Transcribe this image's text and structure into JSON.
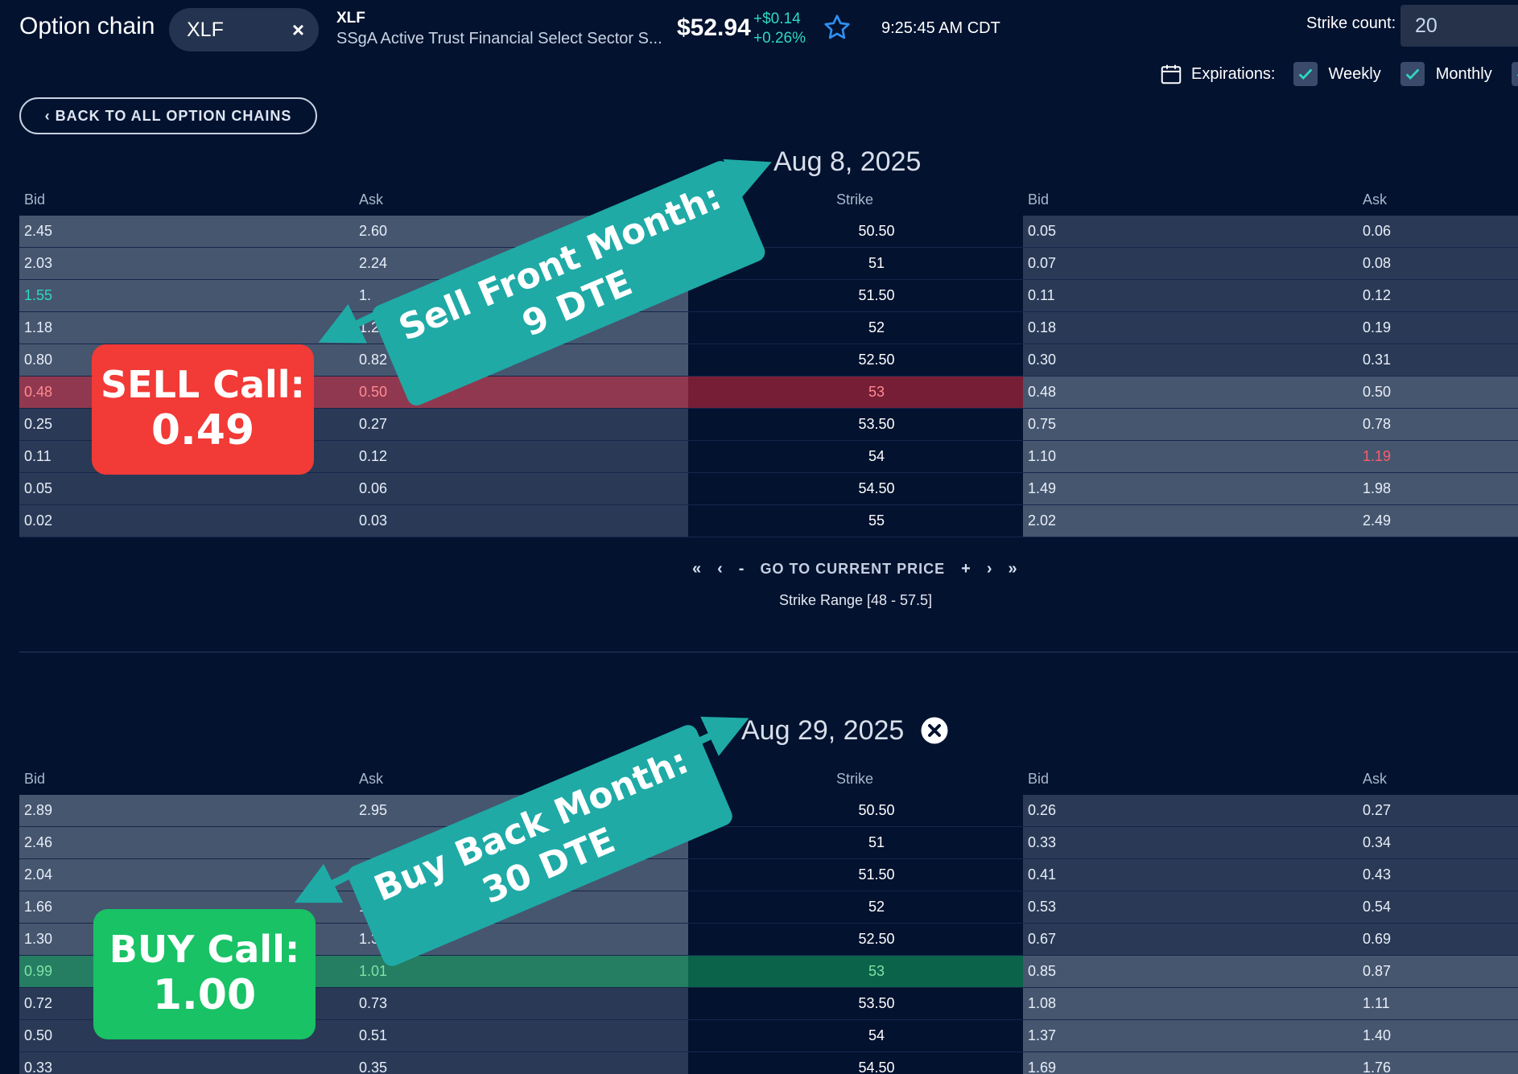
{
  "header": {
    "app_title": "Option chain",
    "symbol": "XLF",
    "clear_symbol": "×",
    "ticker": "XLF",
    "ticker_name": "SSgA Active Trust Financial Select Sector S...",
    "price": "$52.94",
    "change_abs": "+$0.14",
    "change_pct": "+0.26%",
    "time": "9:25:45 AM CDT",
    "strike_count_label": "Strike count:",
    "strike_count": "20",
    "expirations_label": "Expirations:",
    "filters": [
      {
        "label": "Weekly",
        "checked": true
      },
      {
        "label": "Monthly",
        "checked": true
      }
    ],
    "back_button": "‹ BACK TO ALL OPTION CHAINS"
  },
  "columns": {
    "bid": "Bid",
    "ask": "Ask",
    "strike": "Strike"
  },
  "chains": [
    {
      "expiration": "Aug 8, 2025",
      "rows": [
        {
          "call_bid": "2.45",
          "call_ask": "2.60",
          "strike": "50.50",
          "put_bid": "0.05",
          "put_ask": "0.06"
        },
        {
          "call_bid": "2.03",
          "call_ask": "2.24",
          "strike": "51",
          "put_bid": "0.07",
          "put_ask": "0.08"
        },
        {
          "call_bid": "1.55",
          "call_ask": "1.",
          "strike": "51.50",
          "put_bid": "0.11",
          "put_ask": "0.12"
        },
        {
          "call_bid": "1.18",
          "call_ask": "1.2",
          "strike": "52",
          "put_bid": "0.18",
          "put_ask": "0.19"
        },
        {
          "call_bid": "0.80",
          "call_ask": "0.82",
          "strike": "52.50",
          "put_bid": "0.30",
          "put_ask": "0.31"
        },
        {
          "call_bid": "0.48",
          "call_ask": "0.50",
          "strike": "53",
          "put_bid": "0.48",
          "put_ask": "0.50"
        },
        {
          "call_bid": "0.25",
          "call_ask": "0.27",
          "strike": "53.50",
          "put_bid": "0.75",
          "put_ask": "0.78"
        },
        {
          "call_bid": "0.11",
          "call_ask": "0.12",
          "strike": "54",
          "put_bid": "1.10",
          "put_ask": "1.19"
        },
        {
          "call_bid": "0.05",
          "call_ask": "0.06",
          "strike": "54.50",
          "put_bid": "1.49",
          "put_ask": "1.98"
        },
        {
          "call_bid": "0.02",
          "call_ask": "0.03",
          "strike": "55",
          "put_bid": "2.02",
          "put_ask": "2.49"
        }
      ]
    },
    {
      "expiration": "Aug 29, 2025",
      "rows": [
        {
          "call_bid": "2.89",
          "call_ask": "2.95",
          "strike": "50.50",
          "put_bid": "0.26",
          "put_ask": "0.27"
        },
        {
          "call_bid": "2.46",
          "call_ask": "",
          "strike": "51",
          "put_bid": "0.33",
          "put_ask": "0.34"
        },
        {
          "call_bid": "2.04",
          "call_ask": "",
          "strike": "51.50",
          "put_bid": "0.41",
          "put_ask": "0.43"
        },
        {
          "call_bid": "1.66",
          "call_ask": "1.69",
          "strike": "52",
          "put_bid": "0.53",
          "put_ask": "0.54"
        },
        {
          "call_bid": "1.30",
          "call_ask": "1.33",
          "strike": "52.50",
          "put_bid": "0.67",
          "put_ask": "0.69"
        },
        {
          "call_bid": "0.99",
          "call_ask": "1.01",
          "strike": "53",
          "put_bid": "0.85",
          "put_ask": "0.87"
        },
        {
          "call_bid": "0.72",
          "call_ask": "0.73",
          "strike": "53.50",
          "put_bid": "1.08",
          "put_ask": "1.11"
        },
        {
          "call_bid": "0.50",
          "call_ask": "0.51",
          "strike": "54",
          "put_bid": "1.37",
          "put_ask": "1.40"
        },
        {
          "call_bid": "0.33",
          "call_ask": "0.35",
          "strike": "54.50",
          "put_bid": "1.69",
          "put_ask": "1.76"
        }
      ]
    }
  ],
  "pagination": {
    "first": "«",
    "prev": "‹",
    "minus": "-",
    "go_current": "GO TO CURRENT PRICE",
    "plus": "+",
    "next": "›",
    "last": "»",
    "strike_range": "Strike Range [48 - 57.5]"
  },
  "annotations": {
    "sell_banner": [
      "Sell Front Month:",
      "9 DTE"
    ],
    "sell_callout": [
      "SELL Call:",
      "0.49"
    ],
    "buy_banner": [
      "Buy Back Month:",
      "30 DTE"
    ],
    "buy_callout": [
      "BUY Call:",
      "1.00"
    ]
  },
  "colors": {
    "background": "#02122f",
    "accent_teal": "#1faaa6",
    "sell_red": "#f23a36",
    "buy_green": "#18c265",
    "positive_change": "#2fd8c0",
    "negative_value": "#ff5b6b"
  },
  "icons": [
    "star-icon",
    "calendar-icon",
    "checkbox-check-icon",
    "close-circle-icon"
  ]
}
